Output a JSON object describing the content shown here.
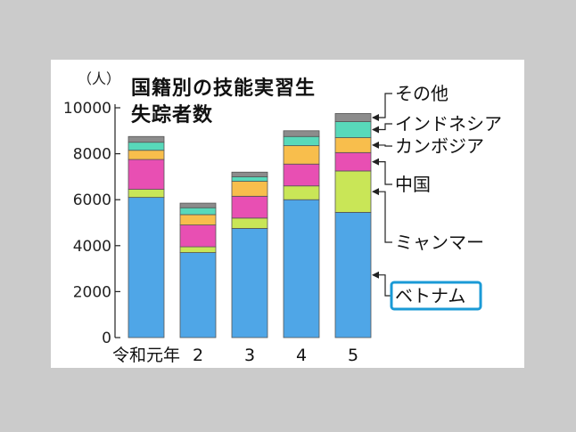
{
  "chart_data": {
    "type": "bar",
    "stacked": true,
    "title_lines": [
      "国籍別の技能実習生",
      "失踪者数"
    ],
    "unit_label": "（人）",
    "categories": [
      "令和元年",
      "2",
      "3",
      "4",
      "5"
    ],
    "ylim": [
      0,
      10000
    ],
    "yticks": [
      "0",
      "2000",
      "4000",
      "6000",
      "8000",
      "10000"
    ],
    "grid": false,
    "legend_placement": "right, labels aligned to top bar",
    "series": [
      {
        "name": "ベトナム",
        "color": "#4fa6e7",
        "values": [
          6100,
          3700,
          4750,
          6000,
          5450
        ]
      },
      {
        "name": "ミャンマー",
        "color": "#c9e657",
        "values": [
          350,
          250,
          450,
          600,
          1800
        ]
      },
      {
        "name": "中国",
        "color": "#e84fb3",
        "values": [
          1300,
          950,
          950,
          950,
          800
        ]
      },
      {
        "name": "カンボジア",
        "color": "#f8be4c",
        "values": [
          400,
          450,
          650,
          800,
          650
        ]
      },
      {
        "name": "インドネシア",
        "color": "#58d9ba",
        "values": [
          350,
          300,
          200,
          400,
          700
        ]
      },
      {
        "name": "その他",
        "color": "#8c8c8c",
        "values": [
          250,
          200,
          200,
          250,
          350
        ]
      }
    ],
    "highlighted_label": "ベトナム",
    "highlight_color": "#1a9ad6"
  }
}
